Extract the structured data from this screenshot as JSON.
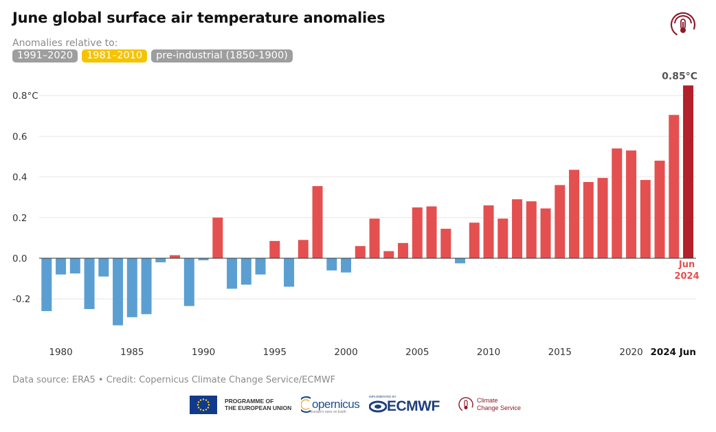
{
  "header": {
    "title": "June global surface air temperature anomalies",
    "subtitle": "Anomalies relative to:",
    "baselines": [
      {
        "label": "1991–2020",
        "active": false
      },
      {
        "label": "1981–2010",
        "active": true
      },
      {
        "label": "pre-industrial (1850-1900)",
        "active": false
      }
    ]
  },
  "footer": {
    "source": "Data source: ERA5 • Credit: Copernicus Climate Change Service/ECMWF",
    "logos": {
      "eu_line1": "PROGRAMME OF",
      "eu_line2": "THE EUROPEAN UNION",
      "copernicus": "opernicus",
      "copernicus_sub": "Europe's eyes on Earth",
      "ecmwf_sub": "IMPLEMENTED BY",
      "ecmwf": "ECMWF",
      "ccs_line1": "Climate",
      "ccs_line2": "Change Service"
    }
  },
  "colors": {
    "positive": "#e45050",
    "negative": "#5b9fd2",
    "highlight": "#b3202a",
    "pill_active": "#f5c300",
    "pill_inactive": "#9e9e9e",
    "brand": "#8b1a2b"
  },
  "chart_data": {
    "type": "bar",
    "title": "June global surface air temperature anomalies",
    "years": [
      1979,
      1980,
      1981,
      1982,
      1983,
      1984,
      1985,
      1986,
      1987,
      1988,
      1989,
      1990,
      1991,
      1992,
      1993,
      1994,
      1995,
      1996,
      1997,
      1998,
      1999,
      2000,
      2001,
      2002,
      2003,
      2004,
      2005,
      2006,
      2007,
      2008,
      2009,
      2010,
      2011,
      2012,
      2013,
      2014,
      2015,
      2016,
      2017,
      2018,
      2019,
      2020,
      2021,
      2022,
      2023,
      2024
    ],
    "values": [
      -0.26,
      -0.08,
      -0.075,
      -0.25,
      -0.09,
      -0.33,
      -0.29,
      -0.275,
      -0.02,
      0.015,
      -0.235,
      -0.01,
      0.2,
      -0.15,
      -0.13,
      -0.08,
      0.085,
      -0.14,
      0.09,
      0.355,
      -0.06,
      -0.07,
      0.06,
      0.195,
      0.035,
      0.075,
      0.25,
      0.255,
      0.145,
      -0.025,
      0.175,
      0.26,
      0.195,
      0.29,
      0.28,
      0.245,
      0.36,
      0.435,
      0.375,
      0.395,
      0.54,
      0.53,
      0.385,
      0.48,
      0.705,
      0.85
    ],
    "ylim": [
      -0.4,
      0.85
    ],
    "yticks": [
      -0.2,
      0.0,
      0.2,
      0.4,
      0.6,
      0.8
    ],
    "ytick_labels": [
      "-0.2",
      "0.0",
      "0.2",
      "0.4",
      "0.6",
      "0.8°C"
    ],
    "xtick_years": [
      1980,
      1985,
      1990,
      1995,
      2000,
      2005,
      2010,
      2015,
      2020
    ],
    "xtick_labels": [
      "1980",
      "1985",
      "1990",
      "1995",
      "2000",
      "2005",
      "2010",
      "2015",
      "2020"
    ],
    "last_xtick_label": "2024 Jun",
    "highlight": {
      "year": 2024,
      "value_label": "0.85°C",
      "label_line1": "Jun",
      "label_line2": "2024"
    },
    "grid": true
  }
}
